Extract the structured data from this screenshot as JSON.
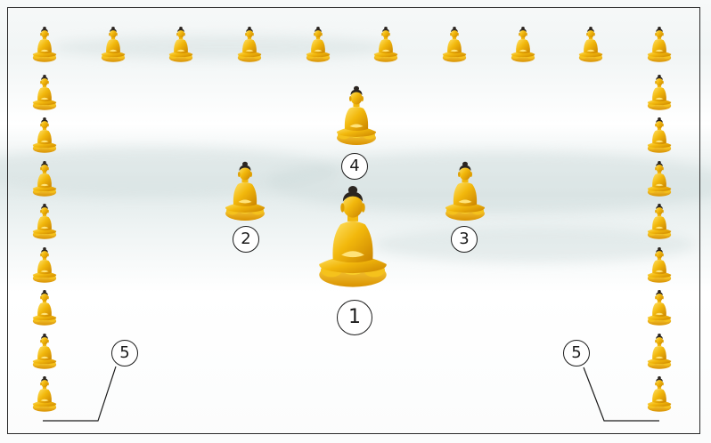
{
  "labels": {
    "main": "1",
    "left_attendant": "2",
    "right_attendant": "3",
    "rear": "4",
    "enclosure_left": "5",
    "enclosure_right": "5"
  },
  "figures": {
    "main": "buddha-statue-icon",
    "attendant": "buddha-statue-icon",
    "border": "buddha-statue-icon"
  },
  "border_counts": {
    "top_row": 10,
    "left_column": 8,
    "right_column": 8
  },
  "colors": {
    "gold": "#f2b80c",
    "gold_light": "#ffe36a",
    "gold_dark": "#c98200",
    "hair": "#2b2520",
    "line": "#1c1c1c"
  }
}
